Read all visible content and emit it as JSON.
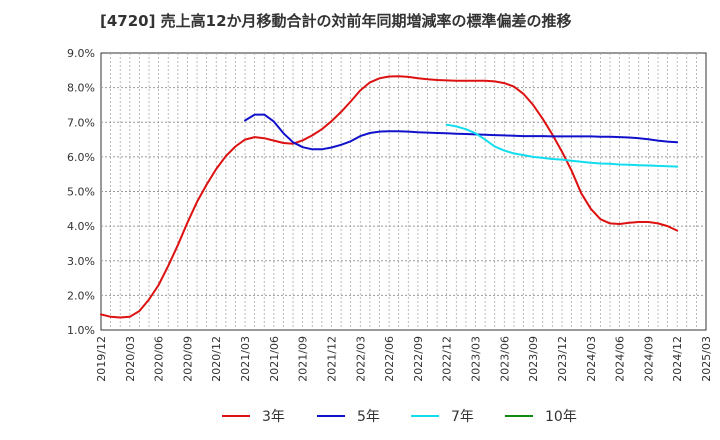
{
  "chart_data": {
    "type": "line",
    "title": "[4720]  売上高12か月移動合計の対前年同期増減率の標準偏差の推移",
    "xlabel": "",
    "ylabel": "",
    "ylim": [
      1.0,
      9.0
    ],
    "yticks": [
      "1.0%",
      "2.0%",
      "3.0%",
      "4.0%",
      "5.0%",
      "6.0%",
      "7.0%",
      "8.0%",
      "9.0%"
    ],
    "categories": [
      "2019/12",
      "2020/03",
      "2020/06",
      "2020/09",
      "2020/12",
      "2021/03",
      "2021/06",
      "2021/09",
      "2021/12",
      "2022/03",
      "2022/06",
      "2022/09",
      "2022/12",
      "2023/03",
      "2023/06",
      "2023/09",
      "2023/12",
      "2024/03",
      "2024/06",
      "2024/09",
      "2024/12",
      "2025/03"
    ],
    "grid": true,
    "legend_position": "bottom",
    "series": [
      {
        "name": "3年",
        "color": "#dd1111",
        "x": [
          "2019/12",
          "2020/01",
          "2020/02",
          "2020/03",
          "2020/04",
          "2020/05",
          "2020/06",
          "2020/07",
          "2020/08",
          "2020/09",
          "2020/10",
          "2020/11",
          "2020/12",
          "2021/01",
          "2021/02",
          "2021/03",
          "2021/04",
          "2021/05",
          "2021/06",
          "2021/07",
          "2021/08",
          "2021/09",
          "2021/10",
          "2021/11",
          "2021/12",
          "2022/01",
          "2022/02",
          "2022/03",
          "2022/04",
          "2022/05",
          "2022/06",
          "2022/07",
          "2022/08",
          "2022/09",
          "2022/10",
          "2022/11",
          "2022/12",
          "2023/01",
          "2023/02",
          "2023/03",
          "2023/04",
          "2023/05",
          "2023/06",
          "2023/07",
          "2023/08",
          "2023/09",
          "2023/10",
          "2023/11",
          "2023/12",
          "2024/01",
          "2024/02",
          "2024/03",
          "2024/04",
          "2024/05",
          "2024/06",
          "2024/07",
          "2024/08",
          "2024/09",
          "2024/10",
          "2024/11",
          "2024/12"
        ],
        "values": [
          1.45,
          1.38,
          1.36,
          1.38,
          1.55,
          1.88,
          2.3,
          2.85,
          3.45,
          4.1,
          4.7,
          5.2,
          5.65,
          6.02,
          6.3,
          6.5,
          6.57,
          6.54,
          6.47,
          6.4,
          6.38,
          6.48,
          6.62,
          6.8,
          7.03,
          7.3,
          7.6,
          7.92,
          8.15,
          8.27,
          8.32,
          8.33,
          8.31,
          8.27,
          8.24,
          8.22,
          8.21,
          8.2,
          8.2,
          8.2,
          8.2,
          8.18,
          8.13,
          8.03,
          7.82,
          7.5,
          7.1,
          6.65,
          6.15,
          5.6,
          4.95,
          4.5,
          4.2,
          4.08,
          4.06,
          4.1,
          4.12,
          4.12,
          4.08,
          4.0,
          3.87
        ]
      },
      {
        "name": "5年",
        "color": "#1111cc",
        "x": [
          "2021/03",
          "2021/04",
          "2021/05",
          "2021/06",
          "2021/07",
          "2021/08",
          "2021/09",
          "2021/10",
          "2021/11",
          "2021/12",
          "2022/01",
          "2022/02",
          "2022/03",
          "2022/04",
          "2022/05",
          "2022/06",
          "2022/07",
          "2022/08",
          "2022/09",
          "2022/10",
          "2022/11",
          "2022/12",
          "2023/01",
          "2023/02",
          "2023/03",
          "2023/04",
          "2023/05",
          "2023/06",
          "2023/07",
          "2023/08",
          "2023/09",
          "2023/10",
          "2023/11",
          "2023/12",
          "2024/01",
          "2024/02",
          "2024/03",
          "2024/04",
          "2024/05",
          "2024/06",
          "2024/07",
          "2024/08",
          "2024/09",
          "2024/10",
          "2024/11",
          "2024/12"
        ],
        "values": [
          7.05,
          7.22,
          7.22,
          7.02,
          6.68,
          6.42,
          6.28,
          6.22,
          6.22,
          6.27,
          6.35,
          6.45,
          6.6,
          6.69,
          6.73,
          6.74,
          6.74,
          6.73,
          6.71,
          6.7,
          6.69,
          6.68,
          6.67,
          6.66,
          6.65,
          6.64,
          6.63,
          6.62,
          6.61,
          6.6,
          6.6,
          6.6,
          6.59,
          6.59,
          6.59,
          6.59,
          6.59,
          6.58,
          6.58,
          6.57,
          6.56,
          6.54,
          6.51,
          6.47,
          6.44,
          6.42
        ]
      },
      {
        "name": "7年",
        "color": "#11ddee",
        "x": [
          "2022/12",
          "2023/01",
          "2023/02",
          "2023/03",
          "2023/04",
          "2023/05",
          "2023/06",
          "2023/07",
          "2023/08",
          "2023/09",
          "2023/10",
          "2023/11",
          "2023/12",
          "2024/01",
          "2024/02",
          "2024/03",
          "2024/04",
          "2024/05",
          "2024/06",
          "2024/07",
          "2024/08",
          "2024/09",
          "2024/10",
          "2024/11",
          "2024/12"
        ],
        "values": [
          6.93,
          6.88,
          6.8,
          6.68,
          6.5,
          6.3,
          6.18,
          6.1,
          6.05,
          6.0,
          5.97,
          5.94,
          5.92,
          5.89,
          5.86,
          5.83,
          5.81,
          5.8,
          5.78,
          5.77,
          5.76,
          5.75,
          5.74,
          5.73,
          5.72
        ]
      },
      {
        "name": "10年",
        "color": "#118811",
        "x": [],
        "values": []
      }
    ]
  }
}
